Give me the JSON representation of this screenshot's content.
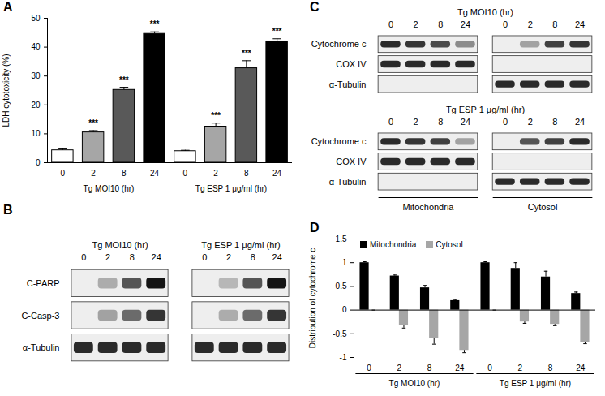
{
  "chart_data": [
    {
      "panel": "A",
      "type": "bar",
      "ylabel": "LDH cytotoxicity (%)",
      "groups": [
        {
          "label": "Tg MOI10 (hr)",
          "categories": [
            "0",
            "2",
            "8",
            "24"
          ]
        },
        {
          "label": "Tg ESP 1 μg/ml (hr)",
          "categories": [
            "0",
            "2",
            "8",
            "24"
          ]
        }
      ],
      "series": [
        {
          "colors": [
            "#ffffff",
            "#a6a6a6",
            "#595959",
            "#000000",
            "#ffffff",
            "#a6a6a6",
            "#595959",
            "#000000"
          ],
          "values": [
            4.3,
            10.5,
            25.2,
            44.6,
            4.0,
            12.5,
            32.7,
            42.0
          ],
          "errors": [
            0.5,
            0.6,
            0.9,
            0.7,
            0.3,
            1.2,
            2.6,
            0.9
          ],
          "annotations": [
            null,
            "***",
            "***",
            "***",
            null,
            "***",
            "***",
            "***"
          ]
        }
      ],
      "ylim": [
        0,
        50
      ],
      "yticks": [
        0,
        10,
        20,
        30,
        40,
        50
      ]
    },
    {
      "panel": "B",
      "type": "blot",
      "blots": [
        {
          "groups": [
            {
              "label": "Tg MOI10 (hr)",
              "lanes": [
                "0",
                "2",
                "8",
                "24"
              ]
            },
            {
              "label": "Tg ESP 1 μg/ml (hr)",
              "lanes": [
                "0",
                "2",
                "8",
                "24"
              ]
            }
          ],
          "rows": [
            {
              "name": "C-PARP",
              "values": [
                0,
                0.3,
                0.7,
                1,
                0,
                0.25,
                0.7,
                1
              ]
            },
            {
              "name": "C-Casp-3",
              "values": [
                0,
                0.35,
                0.6,
                0.85,
                0,
                0.3,
                0.6,
                0.85
              ]
            },
            {
              "name": "α-Tubulin",
              "values": [
                0.9,
                0.9,
                0.9,
                0.9,
                0.9,
                0.9,
                0.9,
                0.9
              ]
            }
          ]
        }
      ]
    },
    {
      "panel": "C",
      "type": "blot",
      "fractions": [
        "Mitochondria",
        "Cytosol"
      ],
      "blots": [
        {
          "title": "Tg MOI10 (hr)",
          "lanes": [
            "0",
            "2",
            "8",
            "24",
            "0",
            "2",
            "8",
            "24"
          ],
          "rows": [
            {
              "name": "Cytochrome c",
              "values": [
                0.9,
                0.85,
                0.75,
                0.45,
                0,
                0.35,
                0.8,
                0.85
              ]
            },
            {
              "name": "COX IV",
              "values": [
                0.9,
                0.9,
                0.9,
                0.9,
                0,
                0,
                0,
                0
              ]
            },
            {
              "name": "α-Tubulin",
              "values": [
                0,
                0,
                0,
                0,
                0.9,
                0.9,
                0.9,
                0.9
              ]
            }
          ]
        },
        {
          "title": "Tg ESP 1 μg/ml (hr)",
          "lanes": [
            "0",
            "2",
            "8",
            "24",
            "0",
            "2",
            "8",
            "24"
          ],
          "rows": [
            {
              "name": "Cytochrome c",
              "values": [
                0.9,
                0.85,
                0.8,
                0.35,
                0,
                0.7,
                0.8,
                0.9
              ]
            },
            {
              "name": "COX IV",
              "values": [
                0.9,
                0.9,
                0.9,
                0.9,
                0,
                0,
                0,
                0
              ]
            },
            {
              "name": "α-Tubulin",
              "values": [
                0,
                0,
                0,
                0,
                0.9,
                0.9,
                0.9,
                0.9
              ]
            }
          ]
        }
      ]
    },
    {
      "panel": "D",
      "type": "bar",
      "ylabel": "Distribution of cytochrome c",
      "legend": "top-left",
      "groups": [
        {
          "label": "Tg MOI10 (hr)",
          "categories": [
            "0",
            "2",
            "8",
            "24"
          ]
        },
        {
          "label": "Tg ESP 1 μg/ml (hr)",
          "categories": [
            "0",
            "2",
            "8",
            "24"
          ]
        }
      ],
      "series": [
        {
          "name": "Mitochondria",
          "color": "#000000",
          "values": [
            1,
            0.72,
            0.47,
            0.2,
            1,
            0.88,
            0.7,
            0.35
          ],
          "errors": [
            0.02,
            0.02,
            0.05,
            0.01,
            0.02,
            0.12,
            0.12,
            0.03
          ]
        },
        {
          "name": "Cytosol",
          "color": "#a6a6a6",
          "values": [
            0,
            -0.33,
            -0.6,
            -0.85,
            0,
            -0.25,
            -0.3,
            -0.68
          ],
          "errors": [
            0,
            0.05,
            0.12,
            0.05,
            0,
            0.03,
            0.03,
            0.03
          ]
        }
      ],
      "ylim": [
        -1,
        1.5
      ],
      "yticks": [
        -1,
        -0.5,
        0,
        0.5,
        1,
        1.5
      ]
    }
  ]
}
